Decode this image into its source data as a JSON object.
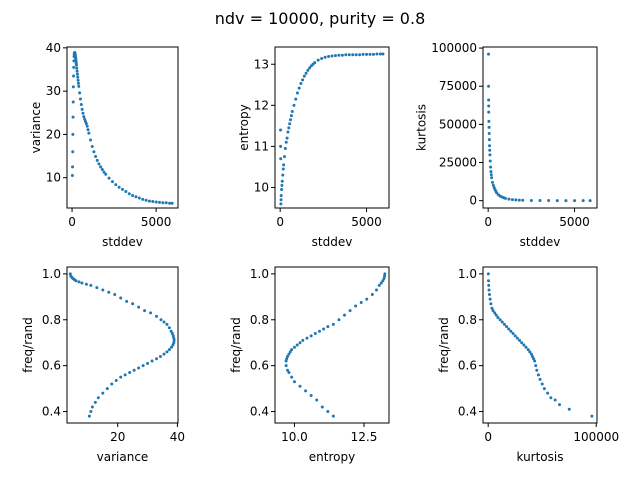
{
  "figure": {
    "title": "ndv = 10000, purity = 0.8"
  },
  "chart_data": [
    {
      "type": "scatter",
      "xlabel": "stddev",
      "ylabel": "variance",
      "xlim": [
        -300,
        6300
      ],
      "ylim": [
        3.0,
        40.2
      ],
      "xticks": [
        {
          "v": 0,
          "label": "0"
        },
        {
          "v": 5000,
          "label": "5000"
        }
      ],
      "yticks": [
        {
          "v": 10,
          "label": "10"
        },
        {
          "v": 20,
          "label": "20"
        },
        {
          "v": 30,
          "label": "30"
        },
        {
          "v": 40,
          "label": "40"
        }
      ],
      "series": [
        {
          "color": "#1f77b4",
          "x": [
            20,
            30,
            40,
            50,
            60,
            70,
            80,
            90,
            100,
            110,
            120,
            130,
            140,
            150,
            160,
            170,
            180,
            190,
            200,
            210,
            220,
            230,
            240,
            250,
            260,
            280,
            300,
            320,
            340,
            360,
            380,
            400,
            450,
            500,
            550,
            600,
            650,
            700,
            750,
            800,
            850,
            900,
            950,
            1000,
            1100,
            1200,
            1300,
            1400,
            1500,
            1600,
            1700,
            1800,
            1900,
            2000,
            2200,
            2400,
            2600,
            2800,
            3000,
            3200,
            3400,
            3600,
            3800,
            4000,
            4200,
            4400,
            4600,
            4800,
            5000,
            5200,
            5400,
            5600,
            5800,
            5950
          ],
          "y": [
            10.5,
            12.5,
            16,
            20,
            24,
            27.5,
            31,
            33.5,
            35.5,
            37,
            38,
            38.5,
            38.8,
            38.9,
            38.9,
            38.8,
            38.6,
            38.4,
            38.1,
            37.8,
            37.5,
            37.2,
            36.8,
            36.4,
            36.0,
            35.3,
            34.6,
            33.9,
            33.2,
            32.5,
            31.8,
            31.1,
            29.6,
            28.2,
            26.9,
            25.8,
            24.9,
            24.1,
            23.5,
            23.0,
            22.5,
            21.9,
            21.1,
            20.3,
            18.7,
            17.2,
            16.0,
            14.9,
            14.0,
            13.2,
            12.5,
            11.9,
            11.3,
            10.8,
            9.9,
            9.1,
            8.4,
            7.8,
            7.3,
            6.8,
            6.3,
            5.9,
            5.6,
            5.3,
            5.0,
            4.8,
            4.6,
            4.5,
            4.4,
            4.3,
            4.2,
            4.2,
            4.1,
            4.1
          ]
        }
      ]
    },
    {
      "type": "scatter",
      "xlabel": "stddev",
      "ylabel": "entropy",
      "xlim": [
        -300,
        6300
      ],
      "ylim": [
        9.5,
        13.42
      ],
      "xticks": [
        {
          "v": 0,
          "label": "0"
        },
        {
          "v": 5000,
          "label": "5000"
        }
      ],
      "yticks": [
        {
          "v": 10,
          "label": "10"
        },
        {
          "v": 11,
          "label": "11"
        },
        {
          "v": 12,
          "label": "12"
        },
        {
          "v": 13,
          "label": "13"
        }
      ],
      "series": [
        {
          "color": "#1f77b4",
          "x": [
            20,
            25,
            30,
            40,
            50,
            60,
            80,
            100,
            120,
            150,
            180,
            200,
            250,
            300,
            350,
            400,
            450,
            500,
            550,
            600,
            650,
            700,
            800,
            900,
            1000,
            1100,
            1200,
            1300,
            1400,
            1500,
            1600,
            1700,
            1800,
            1900,
            2000,
            2200,
            2400,
            2600,
            2800,
            3000,
            3200,
            3400,
            3600,
            3800,
            4000,
            4200,
            4400,
            4600,
            4800,
            5000,
            5200,
            5400,
            5600,
            5800,
            5950
          ],
          "y": [
            11.4,
            11.0,
            10.7,
            9.6,
            9.7,
            9.8,
            9.95,
            10.05,
            10.15,
            10.3,
            10.45,
            10.55,
            10.75,
            10.95,
            11.1,
            11.2,
            11.35,
            11.45,
            11.55,
            11.65,
            11.75,
            11.85,
            12.0,
            12.15,
            12.3,
            12.42,
            12.53,
            12.62,
            12.71,
            12.78,
            12.85,
            12.91,
            12.96,
            13.0,
            13.04,
            13.1,
            13.14,
            13.17,
            13.19,
            13.2,
            13.21,
            13.22,
            13.22,
            13.23,
            13.23,
            13.23,
            13.23,
            13.23,
            13.24,
            13.24,
            13.24,
            13.24,
            13.25,
            13.25,
            13.25
          ]
        }
      ]
    },
    {
      "type": "scatter",
      "xlabel": "stddev",
      "ylabel": "kurtosis",
      "xlim": [
        -300,
        6300
      ],
      "ylim": [
        -4800,
        100700
      ],
      "xticks": [
        {
          "v": 0,
          "label": "0"
        },
        {
          "v": 5000,
          "label": "5000"
        }
      ],
      "yticks": [
        {
          "v": 0,
          "label": "0"
        },
        {
          "v": 25000,
          "label": "25000"
        },
        {
          "v": 50000,
          "label": "50000"
        },
        {
          "v": 75000,
          "label": "75000"
        },
        {
          "v": 100000,
          "label": "100000"
        }
      ],
      "series": [
        {
          "color": "#1f77b4",
          "x": [
            20,
            20,
            25,
            30,
            30,
            40,
            50,
            60,
            70,
            80,
            90,
            100,
            120,
            140,
            160,
            180,
            200,
            250,
            300,
            350,
            400,
            450,
            500,
            600,
            700,
            800,
            900,
            1000,
            1200,
            1400,
            1600,
            1800,
            2000,
            2500,
            3000,
            3500,
            4000,
            4500,
            5000,
            5500,
            5900
          ],
          "y": [
            96000,
            75000,
            66000,
            62000,
            58000,
            52000,
            48000,
            44000,
            40000,
            36000,
            33000,
            30000,
            26000,
            22000,
            19000,
            17000,
            15000,
            12000,
            10000,
            8500,
            7200,
            6000,
            5000,
            3800,
            3000,
            2400,
            1900,
            1500,
            1000,
            700,
            500,
            350,
            250,
            150,
            100,
            80,
            60,
            50,
            40,
            30,
            25
          ]
        }
      ]
    },
    {
      "type": "scatter",
      "xlabel": "variance",
      "ylabel": "freq/rand",
      "xlim": [
        3.0,
        40.2
      ],
      "ylim": [
        0.35,
        1.03
      ],
      "xticks": [
        {
          "v": 20,
          "label": "20"
        },
        {
          "v": 40,
          "label": "40"
        }
      ],
      "yticks": [
        {
          "v": 0.4,
          "label": "0.4"
        },
        {
          "v": 0.6,
          "label": "0.6"
        },
        {
          "v": 0.8,
          "label": "0.8"
        },
        {
          "v": 1.0,
          "label": "1.0"
        }
      ],
      "series": [
        {
          "color": "#1f77b4",
          "x": [
            4.1,
            4.3,
            4.6,
            5.0,
            5.5,
            6.0,
            7.0,
            8.0,
            9.5,
            11.0,
            13.0,
            15.0,
            17.0,
            19.0,
            21.0,
            23.0,
            25.0,
            27.0,
            29.0,
            31.0,
            33.0,
            34.5,
            35.5,
            36.5,
            37.3,
            37.9,
            38.3,
            38.6,
            38.8,
            38.9,
            38.8,
            38.5,
            38.0,
            37.3,
            36.5,
            35.5,
            34.3,
            33.0,
            31.5,
            30.0,
            28.5,
            27.0,
            25.5,
            24.0,
            22.5,
            21.0,
            19.5,
            18.0,
            16.5,
            15.0,
            13.5,
            12.5,
            11.5,
            11.0,
            10.5
          ],
          "y": [
            1.0,
            0.99,
            0.985,
            0.98,
            0.975,
            0.97,
            0.965,
            0.96,
            0.955,
            0.95,
            0.94,
            0.93,
            0.92,
            0.91,
            0.895,
            0.88,
            0.87,
            0.855,
            0.84,
            0.83,
            0.815,
            0.8,
            0.79,
            0.78,
            0.765,
            0.75,
            0.74,
            0.73,
            0.72,
            0.71,
            0.7,
            0.69,
            0.68,
            0.67,
            0.66,
            0.65,
            0.64,
            0.63,
            0.62,
            0.61,
            0.6,
            0.59,
            0.58,
            0.57,
            0.56,
            0.55,
            0.535,
            0.52,
            0.5,
            0.48,
            0.46,
            0.44,
            0.42,
            0.4,
            0.38
          ]
        }
      ]
    },
    {
      "type": "scatter",
      "xlabel": "entropy",
      "ylabel": "freq/rand",
      "xlim": [
        9.3,
        13.4
      ],
      "ylim": [
        0.35,
        1.03
      ],
      "xticks": [
        {
          "v": 10.0,
          "label": "10.0"
        },
        {
          "v": 12.5,
          "label": "12.5"
        }
      ],
      "yticks": [
        {
          "v": 0.4,
          "label": "0.4"
        },
        {
          "v": 0.6,
          "label": "0.6"
        },
        {
          "v": 0.8,
          "label": "0.8"
        },
        {
          "v": 1.0,
          "label": "1.0"
        }
      ],
      "series": [
        {
          "color": "#1f77b4",
          "x": [
            11.4,
            11.2,
            11.0,
            10.8,
            10.6,
            10.4,
            10.2,
            10.0,
            9.9,
            9.8,
            9.75,
            9.7,
            9.7,
            9.72,
            9.75,
            9.8,
            9.85,
            9.9,
            10.0,
            10.1,
            10.2,
            10.3,
            10.45,
            10.6,
            10.75,
            10.9,
            11.05,
            11.2,
            11.4,
            11.6,
            11.8,
            12.0,
            12.2,
            12.4,
            12.6,
            12.8,
            12.95,
            13.05,
            13.12,
            13.18,
            13.22,
            13.24,
            13.25
          ],
          "y": [
            0.38,
            0.4,
            0.42,
            0.45,
            0.47,
            0.49,
            0.51,
            0.53,
            0.55,
            0.57,
            0.58,
            0.6,
            0.62,
            0.63,
            0.64,
            0.65,
            0.66,
            0.67,
            0.68,
            0.69,
            0.7,
            0.71,
            0.72,
            0.73,
            0.74,
            0.75,
            0.76,
            0.77,
            0.78,
            0.8,
            0.82,
            0.84,
            0.86,
            0.875,
            0.89,
            0.91,
            0.93,
            0.95,
            0.96,
            0.97,
            0.98,
            0.99,
            1.0
          ]
        }
      ]
    },
    {
      "type": "scatter",
      "xlabel": "kurtosis",
      "ylabel": "freq/rand",
      "xlim": [
        -4800,
        100700
      ],
      "ylim": [
        0.35,
        1.03
      ],
      "xticks": [
        {
          "v": 0,
          "label": "0"
        },
        {
          "v": 100000,
          "label": "100000"
        }
      ],
      "yticks": [
        {
          "v": 0.4,
          "label": "0.4"
        },
        {
          "v": 0.6,
          "label": "0.6"
        },
        {
          "v": 0.8,
          "label": "0.8"
        },
        {
          "v": 1.0,
          "label": "1.0"
        }
      ],
      "series": [
        {
          "color": "#1f77b4",
          "x": [
            96000,
            75000,
            66000,
            62000,
            58000,
            55000,
            52000,
            50000,
            48000,
            46500,
            45000,
            44000,
            43000,
            42000,
            41000,
            40000,
            38500,
            37000,
            35000,
            33000,
            31000,
            29000,
            27000,
            25000,
            23000,
            21000,
            19000,
            17000,
            15000,
            13000,
            11000,
            9000,
            7500,
            6000,
            4500,
            3500,
            2500,
            1800,
            1200,
            800,
            500,
            300,
            150
          ],
          "y": [
            0.38,
            0.41,
            0.43,
            0.45,
            0.46,
            0.48,
            0.5,
            0.52,
            0.54,
            0.56,
            0.58,
            0.6,
            0.62,
            0.63,
            0.64,
            0.65,
            0.66,
            0.67,
            0.68,
            0.69,
            0.7,
            0.71,
            0.72,
            0.73,
            0.74,
            0.75,
            0.76,
            0.77,
            0.78,
            0.79,
            0.8,
            0.81,
            0.82,
            0.83,
            0.84,
            0.85,
            0.87,
            0.89,
            0.91,
            0.93,
            0.95,
            0.97,
            1.0
          ]
        }
      ]
    }
  ]
}
